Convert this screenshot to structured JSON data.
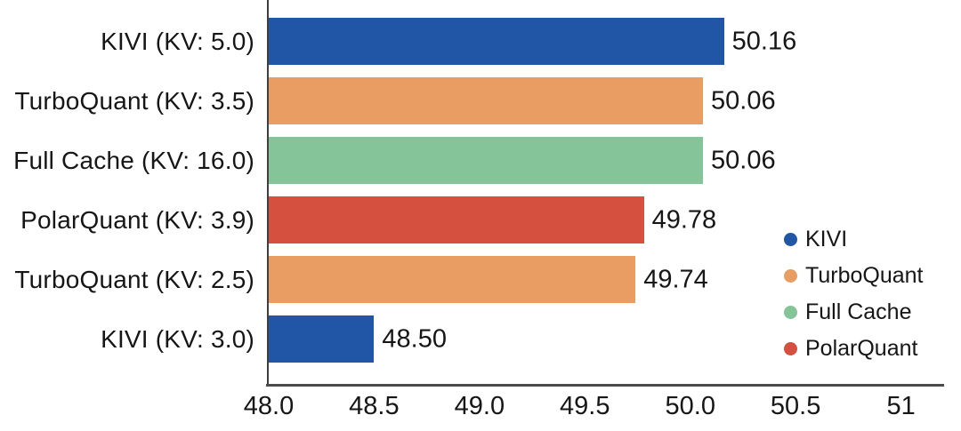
{
  "chart_data": {
    "type": "bar",
    "orientation": "horizontal",
    "title": "",
    "xlabel": "",
    "ylabel": "",
    "grid": false,
    "xlim": [
      48.0,
      51.2
    ],
    "categories": [
      "KIVI (KV: 5.0)",
      "TurboQuant (KV: 3.5)",
      "Full Cache (KV: 16.0)",
      "PolarQuant (KV: 3.9)",
      "TurboQuant (KV: 2.5)",
      "KIVI (KV: 3.0)"
    ],
    "values": [
      50.16,
      50.06,
      50.06,
      49.78,
      49.74,
      48.5
    ],
    "value_labels": [
      "50.16",
      "50.06",
      "50.06",
      "49.78",
      "49.74",
      "48.50"
    ],
    "bar_series": [
      "KIVI",
      "TurboQuant",
      "Full Cache",
      "PolarQuant",
      "TurboQuant",
      "KIVI"
    ],
    "bar_colors": [
      "#2156a6",
      "#e99d63",
      "#85c398",
      "#d5503f",
      "#e99d63",
      "#2156a6"
    ],
    "x_ticks": [
      {
        "label": "48.0",
        "value": 48.0
      },
      {
        "label": "48.5",
        "value": 48.5
      },
      {
        "label": "49.0",
        "value": 49.0
      },
      {
        "label": "49.5",
        "value": 49.5
      },
      {
        "label": "50.0",
        "value": 50.0
      },
      {
        "label": "50.5",
        "value": 50.5
      },
      {
        "label": "51",
        "value": 51.0
      }
    ],
    "legend": {
      "position": "right",
      "entries": [
        {
          "label": "KIVI",
          "color": "#2156a6"
        },
        {
          "label": "TurboQuant",
          "color": "#e99d63"
        },
        {
          "label": "Full Cache",
          "color": "#85c398"
        },
        {
          "label": "PolarQuant",
          "color": "#d5503f"
        }
      ]
    },
    "colors": {
      "axis_line": "#4c4c4c",
      "text": "#161616",
      "background": "#ffffff"
    }
  }
}
